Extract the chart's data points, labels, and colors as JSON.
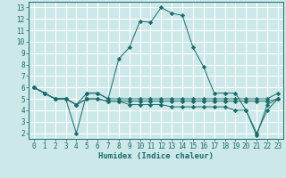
{
  "xlabel": "Humidex (Indice chaleur)",
  "bg_color": "#cce8e8",
  "line_color": "#1a6b6b",
  "grid_color": "#b0d8d8",
  "xlim": [
    -0.5,
    23.5
  ],
  "ylim": [
    1.5,
    13.5
  ],
  "xticks": [
    0,
    1,
    2,
    3,
    4,
    5,
    6,
    7,
    8,
    9,
    10,
    11,
    12,
    13,
    14,
    15,
    16,
    17,
    18,
    19,
    20,
    21,
    22,
    23
  ],
  "yticks": [
    2,
    3,
    4,
    5,
    6,
    7,
    8,
    9,
    10,
    11,
    12,
    13
  ],
  "series": [
    [
      6.0,
      5.5,
      5.0,
      5.0,
      4.5,
      5.5,
      5.5,
      5.0,
      8.5,
      9.5,
      11.8,
      11.7,
      13.0,
      12.5,
      12.3,
      9.5,
      7.8,
      5.5,
      5.5,
      5.5,
      4.0,
      1.8,
      4.5,
      5.0
    ],
    [
      6.0,
      5.5,
      5.0,
      5.0,
      2.0,
      5.5,
      5.5,
      5.0,
      5.0,
      5.0,
      5.0,
      5.0,
      5.0,
      5.0,
      5.0,
      5.0,
      5.0,
      5.0,
      5.0,
      5.0,
      5.0,
      5.0,
      5.0,
      5.5
    ],
    [
      6.0,
      5.5,
      5.0,
      5.0,
      4.5,
      5.0,
      5.0,
      4.8,
      4.8,
      4.8,
      4.8,
      4.8,
      4.8,
      4.8,
      4.8,
      4.8,
      4.8,
      4.8,
      4.8,
      4.8,
      4.8,
      4.8,
      4.8,
      5.0
    ],
    [
      6.0,
      5.5,
      5.0,
      5.0,
      4.5,
      5.0,
      5.0,
      4.8,
      4.8,
      4.5,
      4.5,
      4.5,
      4.5,
      4.3,
      4.3,
      4.3,
      4.3,
      4.3,
      4.3,
      4.0,
      4.0,
      2.0,
      4.0,
      5.0
    ]
  ]
}
